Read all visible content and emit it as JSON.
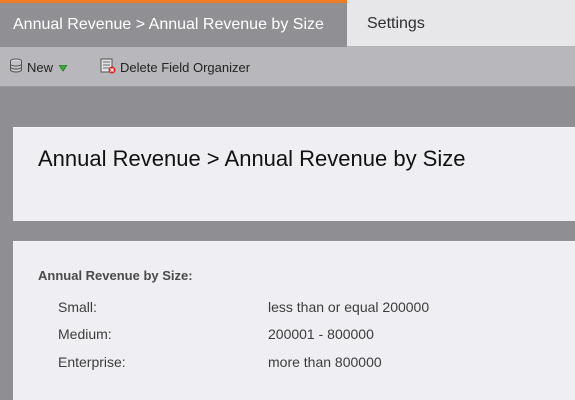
{
  "tabs": {
    "active_label": "Annual Revenue > Annual Revenue by Size",
    "settings_label": "Settings",
    "accent_color": "#f07b25"
  },
  "toolbar": {
    "new_label": "New",
    "new_icon": "database-icon",
    "new_dropdown_icon": "green-down-triangle-icon",
    "delete_label": "Delete Field Organizer",
    "delete_icon": "delete-organizer-icon"
  },
  "header": {
    "title": "Annual Revenue > Annual Revenue by Size"
  },
  "details": {
    "heading": "Annual Revenue by Size:",
    "rows": [
      {
        "name": "Small:",
        "value": "less than or equal 200000"
      },
      {
        "name": "Medium:",
        "value": "200001 - 800000"
      },
      {
        "name": "Enterprise:",
        "value": "more than 800000"
      }
    ]
  }
}
